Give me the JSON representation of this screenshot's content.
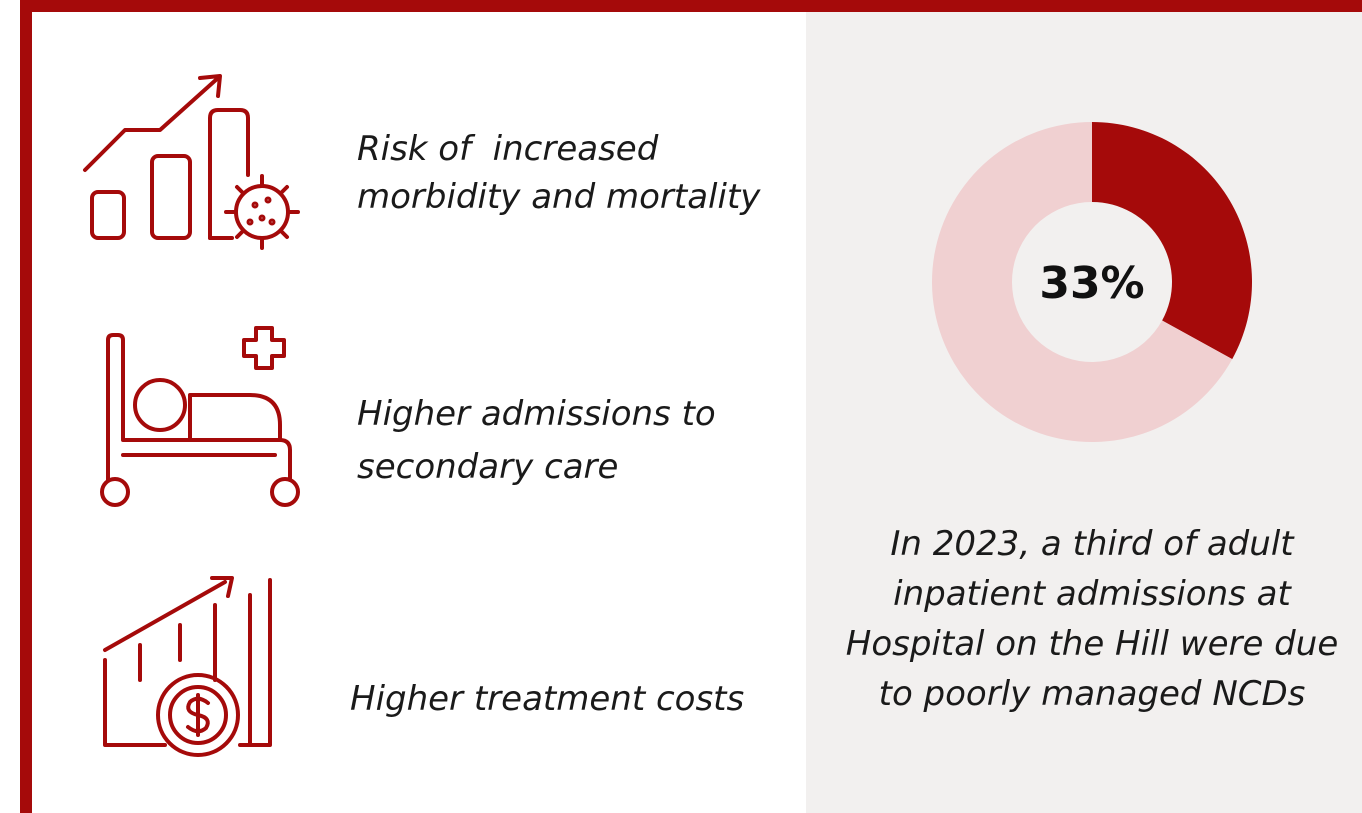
{
  "items": [
    {
      "lines": [
        "Risk of  increased",
        "morbidity and mortality"
      ]
    },
    {
      "lines": [
        "Higher admissions to",
        "secondary care"
      ]
    },
    {
      "lines": [
        "Higher treatment costs"
      ]
    }
  ],
  "caption": {
    "lines": [
      "In 2023, a third of adult",
      "inpatient admissions at",
      "Hospital on the Hill were due",
      "to poorly managed NCDs"
    ]
  },
  "chart_data": {
    "type": "donut",
    "values": [
      33,
      67
    ],
    "value_labels": [
      "33%",
      null
    ],
    "colors": [
      "#a50a0a",
      "#f0d0d1"
    ]
  }
}
